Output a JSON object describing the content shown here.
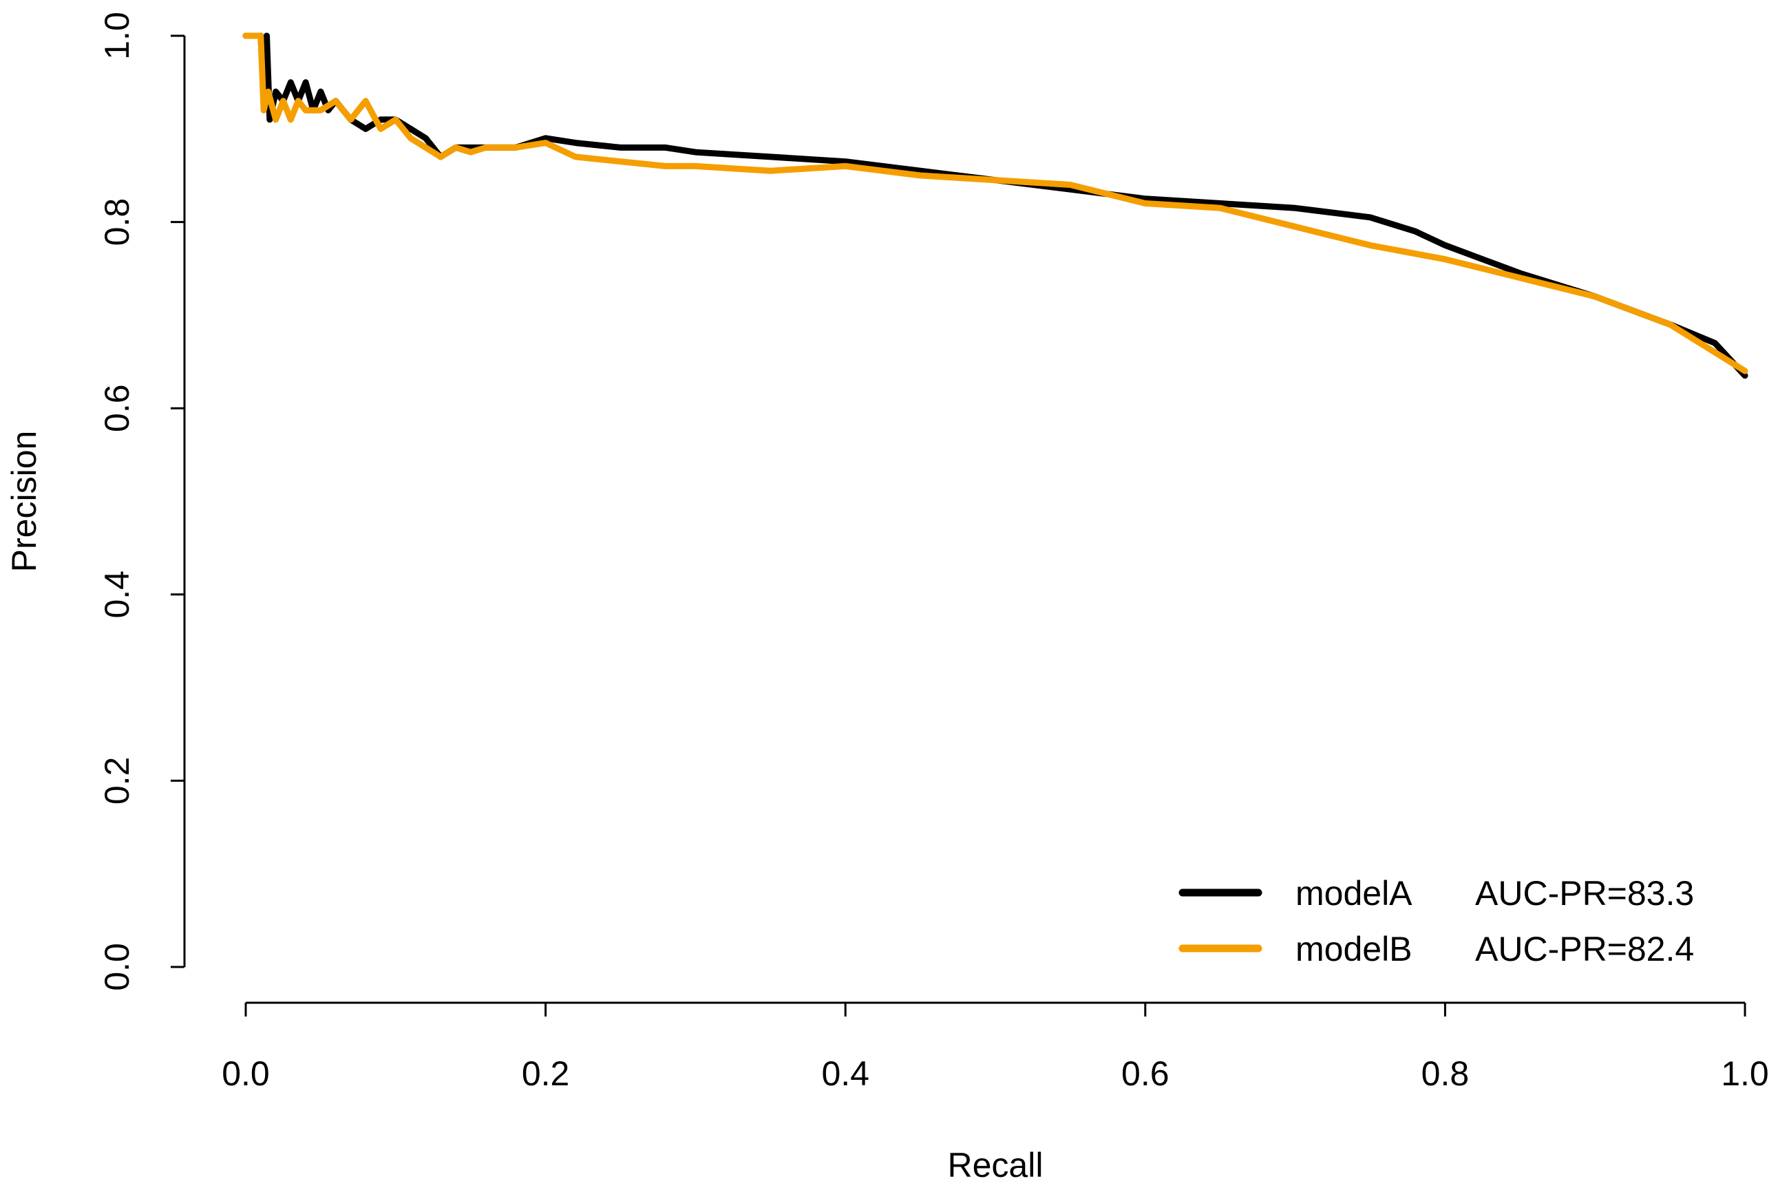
{
  "chart_data": {
    "type": "line",
    "title": "",
    "xlabel": "Recall",
    "ylabel": "Precision",
    "xlim": [
      0.0,
      1.0
    ],
    "ylim": [
      0.0,
      1.0
    ],
    "xticks": [
      "0.0",
      "0.2",
      "0.4",
      "0.6",
      "0.8",
      "1.0"
    ],
    "yticks": [
      "0.0",
      "0.2",
      "0.4",
      "0.6",
      "0.8",
      "1.0"
    ],
    "grid": false,
    "legend_position": "bottom-right",
    "series": [
      {
        "name": "modelA",
        "label": "modelA",
        "metric": "AUC-PR=83.3",
        "color": "#000000",
        "x": [
          0.0,
          0.005,
          0.01,
          0.012,
          0.014,
          0.016,
          0.02,
          0.025,
          0.03,
          0.035,
          0.04,
          0.045,
          0.05,
          0.055,
          0.06,
          0.07,
          0.08,
          0.09,
          0.1,
          0.11,
          0.12,
          0.13,
          0.14,
          0.15,
          0.16,
          0.18,
          0.2,
          0.22,
          0.25,
          0.28,
          0.3,
          0.35,
          0.4,
          0.45,
          0.5,
          0.55,
          0.6,
          0.65,
          0.7,
          0.75,
          0.78,
          0.8,
          0.85,
          0.9,
          0.95,
          0.98,
          1.0
        ],
        "y": [
          1.0,
          1.0,
          1.0,
          0.93,
          1.0,
          0.91,
          0.94,
          0.93,
          0.95,
          0.93,
          0.95,
          0.92,
          0.94,
          0.92,
          0.93,
          0.91,
          0.9,
          0.91,
          0.91,
          0.9,
          0.89,
          0.87,
          0.88,
          0.88,
          0.88,
          0.88,
          0.89,
          0.885,
          0.88,
          0.88,
          0.875,
          0.87,
          0.865,
          0.855,
          0.845,
          0.835,
          0.825,
          0.82,
          0.815,
          0.805,
          0.79,
          0.775,
          0.745,
          0.72,
          0.69,
          0.67,
          0.635
        ]
      },
      {
        "name": "modelB",
        "label": "modelB",
        "metric": "AUC-PR=82.4",
        "color": "#F59E00",
        "x": [
          0.0,
          0.01,
          0.012,
          0.015,
          0.02,
          0.025,
          0.03,
          0.035,
          0.04,
          0.05,
          0.06,
          0.07,
          0.08,
          0.09,
          0.1,
          0.11,
          0.12,
          0.13,
          0.14,
          0.15,
          0.16,
          0.18,
          0.2,
          0.22,
          0.25,
          0.28,
          0.3,
          0.35,
          0.4,
          0.45,
          0.5,
          0.55,
          0.6,
          0.65,
          0.7,
          0.75,
          0.8,
          0.85,
          0.9,
          0.95,
          1.0
        ],
        "y": [
          1.0,
          1.0,
          0.92,
          0.94,
          0.91,
          0.93,
          0.91,
          0.93,
          0.92,
          0.92,
          0.93,
          0.91,
          0.93,
          0.9,
          0.91,
          0.89,
          0.88,
          0.87,
          0.88,
          0.875,
          0.88,
          0.88,
          0.885,
          0.87,
          0.865,
          0.86,
          0.86,
          0.855,
          0.86,
          0.85,
          0.845,
          0.84,
          0.82,
          0.815,
          0.795,
          0.775,
          0.76,
          0.74,
          0.72,
          0.69,
          0.64
        ]
      }
    ]
  }
}
